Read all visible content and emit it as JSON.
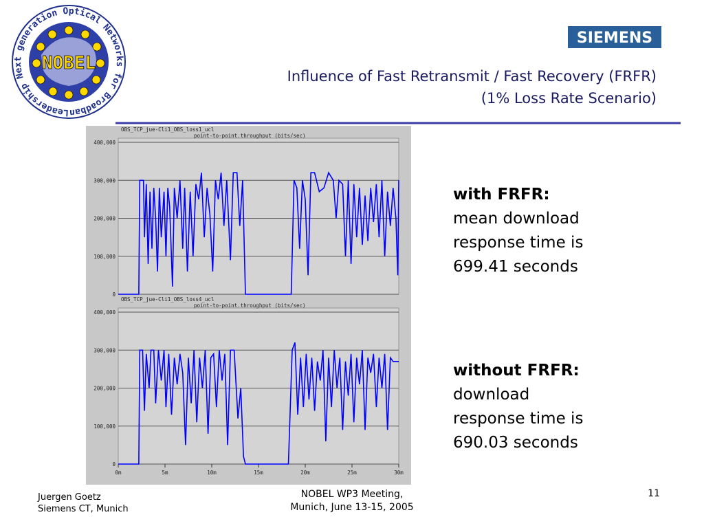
{
  "slide": {
    "title_line1": "Influence of Fast Retransmit / Fast Recovery (FRFR)",
    "title_line2": "(1% Loss Rate Scenario)",
    "brand": "SIEMENS",
    "logo_center": "NOBEL",
    "logo_ring": "Leadership Next generation Optical Networks for Broadband European",
    "with_heading": "with FRFR:",
    "with_lines": [
      "mean download",
      "response time is",
      "699.41 seconds"
    ],
    "without_heading": "without FRFR:",
    "without_lines": [
      "download",
      "response time is",
      "690.03 seconds"
    ],
    "footer_left": [
      "Juergen Goetz",
      "Siemens CT, Munich"
    ],
    "footer_center": [
      "NOBEL WP3 Meeting,",
      "Munich, June 13-15, 2005"
    ],
    "page_number": "11"
  },
  "chart_data": [
    {
      "type": "line",
      "title": "OBS_TCP_jue-Cli1_OBS_loss1_ucl",
      "subtitle": "point-to-point.throughput (bits/sec)",
      "color": "#0000ff",
      "grid": true,
      "x": [
        0,
        2.2,
        2.3,
        2.7,
        2.8,
        3.0,
        3.2,
        3.4,
        3.6,
        3.8,
        4.0,
        4.2,
        4.4,
        4.6,
        4.9,
        5.1,
        5.3,
        5.5,
        5.8,
        6.0,
        6.3,
        6.6,
        6.9,
        7.1,
        7.4,
        7.7,
        8.0,
        8.3,
        8.6,
        8.9,
        9.2,
        9.5,
        9.8,
        10.1,
        10.4,
        10.7,
        11.0,
        11.3,
        11.6,
        12.0,
        12.3,
        12.7,
        13.0,
        13.3,
        13.6,
        18.5,
        18.8,
        19.1,
        19.4,
        19.7,
        20.0,
        20.3,
        20.6,
        21.0,
        21.5,
        22.0,
        22.5,
        23.0,
        23.3,
        23.6,
        24.0,
        24.3,
        24.6,
        24.9,
        25.2,
        25.5,
        25.8,
        26.1,
        26.4,
        26.7,
        27.0,
        27.3,
        27.6,
        27.9,
        28.2,
        28.5,
        28.8,
        29.1,
        29.4,
        29.7,
        29.9,
        30
      ],
      "values": [
        0,
        0,
        300000,
        300000,
        150000,
        290000,
        80000,
        270000,
        120000,
        280000,
        200000,
        60000,
        280000,
        150000,
        270000,
        100000,
        280000,
        230000,
        20000,
        280000,
        200000,
        300000,
        120000,
        280000,
        60000,
        270000,
        100000,
        290000,
        250000,
        320000,
        150000,
        280000,
        210000,
        60000,
        300000,
        250000,
        320000,
        180000,
        300000,
        90000,
        320000,
        320000,
        180000,
        300000,
        0,
        0,
        300000,
        280000,
        120000,
        300000,
        250000,
        50000,
        320000,
        320000,
        270000,
        280000,
        320000,
        300000,
        200000,
        300000,
        290000,
        100000,
        300000,
        80000,
        290000,
        150000,
        280000,
        130000,
        260000,
        140000,
        280000,
        190000,
        290000,
        150000,
        300000,
        100000,
        270000,
        180000,
        280000,
        200000,
        50000,
        300000
      ],
      "xlim": [
        0,
        30
      ],
      "ylim": [
        0,
        400000
      ],
      "yticks": [
        0,
        {
          "value": 100000,
          "label": "100,000"
        },
        {
          "value": 200000,
          "label": "200,000"
        },
        {
          "value": 300000,
          "label": "300,000"
        },
        {
          "value": 400000,
          "label": "400,000"
        }
      ]
    },
    {
      "type": "line",
      "title": "OBS_TCP_jue-Cli1_OBS_loss4_ucl",
      "subtitle": "point-to-point.throughput (bits/sec)",
      "color": "#0000ff",
      "grid": true,
      "x": [
        0,
        2.2,
        2.3,
        2.6,
        2.8,
        3.0,
        3.3,
        3.5,
        3.8,
        4.0,
        4.3,
        4.6,
        4.9,
        5.1,
        5.4,
        5.7,
        6.0,
        6.3,
        6.6,
        6.9,
        7.2,
        7.5,
        7.8,
        8.1,
        8.4,
        8.7,
        9.0,
        9.3,
        9.6,
        9.9,
        10.2,
        10.5,
        10.8,
        11.1,
        11.4,
        11.7,
        12.0,
        12.4,
        12.8,
        13.1,
        13.4,
        13.6,
        18.2,
        18.6,
        18.9,
        19.2,
        19.5,
        19.8,
        20.1,
        20.4,
        20.7,
        21.0,
        21.3,
        21.6,
        21.9,
        22.2,
        22.5,
        22.8,
        23.1,
        23.4,
        23.7,
        24.0,
        24.3,
        24.6,
        24.9,
        25.2,
        25.5,
        25.8,
        26.1,
        26.4,
        26.7,
        27.0,
        27.3,
        27.6,
        27.9,
        28.2,
        28.5,
        28.8,
        29.1,
        29.4,
        30
      ],
      "values": [
        0,
        0,
        300000,
        300000,
        140000,
        290000,
        200000,
        300000,
        300000,
        160000,
        300000,
        220000,
        300000,
        150000,
        290000,
        130000,
        280000,
        210000,
        290000,
        240000,
        50000,
        280000,
        160000,
        300000,
        110000,
        280000,
        200000,
        300000,
        80000,
        280000,
        290000,
        150000,
        300000,
        220000,
        290000,
        50000,
        300000,
        300000,
        120000,
        200000,
        20000,
        0,
        0,
        300000,
        320000,
        130000,
        280000,
        150000,
        290000,
        170000,
        280000,
        140000,
        270000,
        220000,
        300000,
        60000,
        280000,
        150000,
        300000,
        200000,
        280000,
        90000,
        270000,
        180000,
        290000,
        110000,
        280000,
        210000,
        300000,
        90000,
        280000,
        240000,
        290000,
        150000,
        280000,
        200000,
        290000,
        90000,
        280000,
        270000,
        270000
      ],
      "xlim": [
        0,
        30
      ],
      "ylim": [
        0,
        400000
      ],
      "xticks": [
        {
          "value": 0,
          "label": "0m"
        },
        {
          "value": 5,
          "label": "5m"
        },
        {
          "value": 10,
          "label": "10m"
        },
        {
          "value": 15,
          "label": "15m"
        },
        {
          "value": 20,
          "label": "20m"
        },
        {
          "value": 25,
          "label": "25m"
        },
        {
          "value": 30,
          "label": "30m"
        }
      ],
      "yticks": [
        0,
        {
          "value": 100000,
          "label": "100,000"
        },
        {
          "value": 200000,
          "label": "200,000"
        },
        {
          "value": 300000,
          "label": "300,000"
        },
        {
          "value": 400000,
          "label": "400,000"
        }
      ]
    }
  ]
}
